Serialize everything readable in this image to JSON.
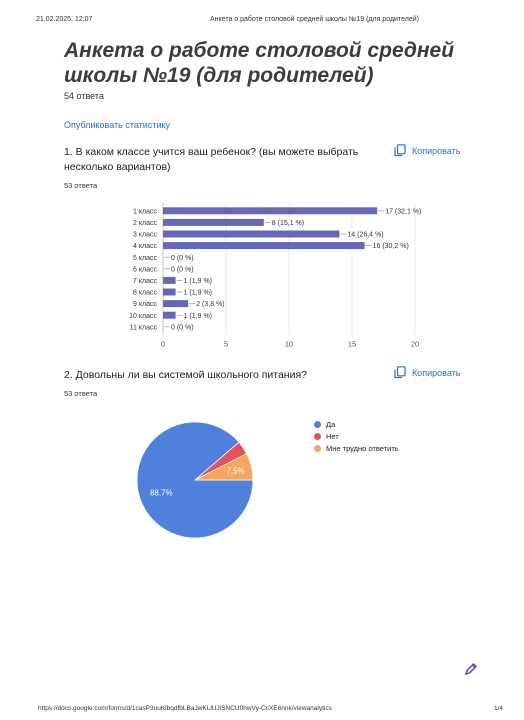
{
  "header": {
    "datetime": "21.02.2025, 12:07",
    "page_title": "Анкета о работе столовой средней школы №19 (для родителей)"
  },
  "form": {
    "title": "Анкета о работе столовой средней школы №19 (для родителей)",
    "responses": "54 ответа",
    "publish_link": "Опубликовать статистику"
  },
  "copy_label": "Копировать",
  "questions": [
    {
      "title": "1. В каком классе учится ваш ребенок? (вы можете выбрать несколько вариантов)",
      "responses": "53 ответа"
    },
    {
      "title": "2. Довольны ли вы системой школьного питания?",
      "responses": "53 ответа"
    }
  ],
  "chart_data": [
    {
      "type": "bar",
      "orientation": "horizontal",
      "categories": [
        "1 класс",
        "2 класс",
        "3 класс",
        "4 класс",
        "5 класс",
        "6 класс",
        "7 класс",
        "8 класс",
        "9 класс",
        "10 класс",
        "11 класс"
      ],
      "values": [
        17,
        8,
        14,
        16,
        0,
        0,
        1,
        1,
        2,
        1,
        0
      ],
      "data_labels": [
        "17 (32,1 %)",
        "8 (15,1 %)",
        "14 (26,4 %)",
        "16 (30,2 %)",
        "0 (0 %)",
        "0 (0 %)",
        "1 (1,9 %)",
        "1 (1,9 %)",
        "2 (3,8 %)",
        "1 (1,9 %)",
        "0 (0 %)"
      ],
      "xlim": [
        0,
        20
      ],
      "xticks": [
        0,
        5,
        10,
        15,
        20
      ],
      "grid": true,
      "bar_color": "#6767b8"
    },
    {
      "type": "pie",
      "labels": [
        "Да",
        "Нет",
        "Мне трудно ответить"
      ],
      "values": [
        88.7,
        3.8,
        7.5
      ],
      "slice_labels": [
        "88,7%",
        "",
        "7,5%"
      ],
      "colors": [
        "#4f81dc",
        "#e8505c",
        "#f6a55c"
      ],
      "legend": "right"
    }
  ],
  "footer": {
    "url": "https://docs.google.com/forms/d/1casP3uuKlbqdfbLBaJwKLlUJiSNCU0hwVy-CcXE6nnk/viewanalytics",
    "page": "1/4"
  }
}
